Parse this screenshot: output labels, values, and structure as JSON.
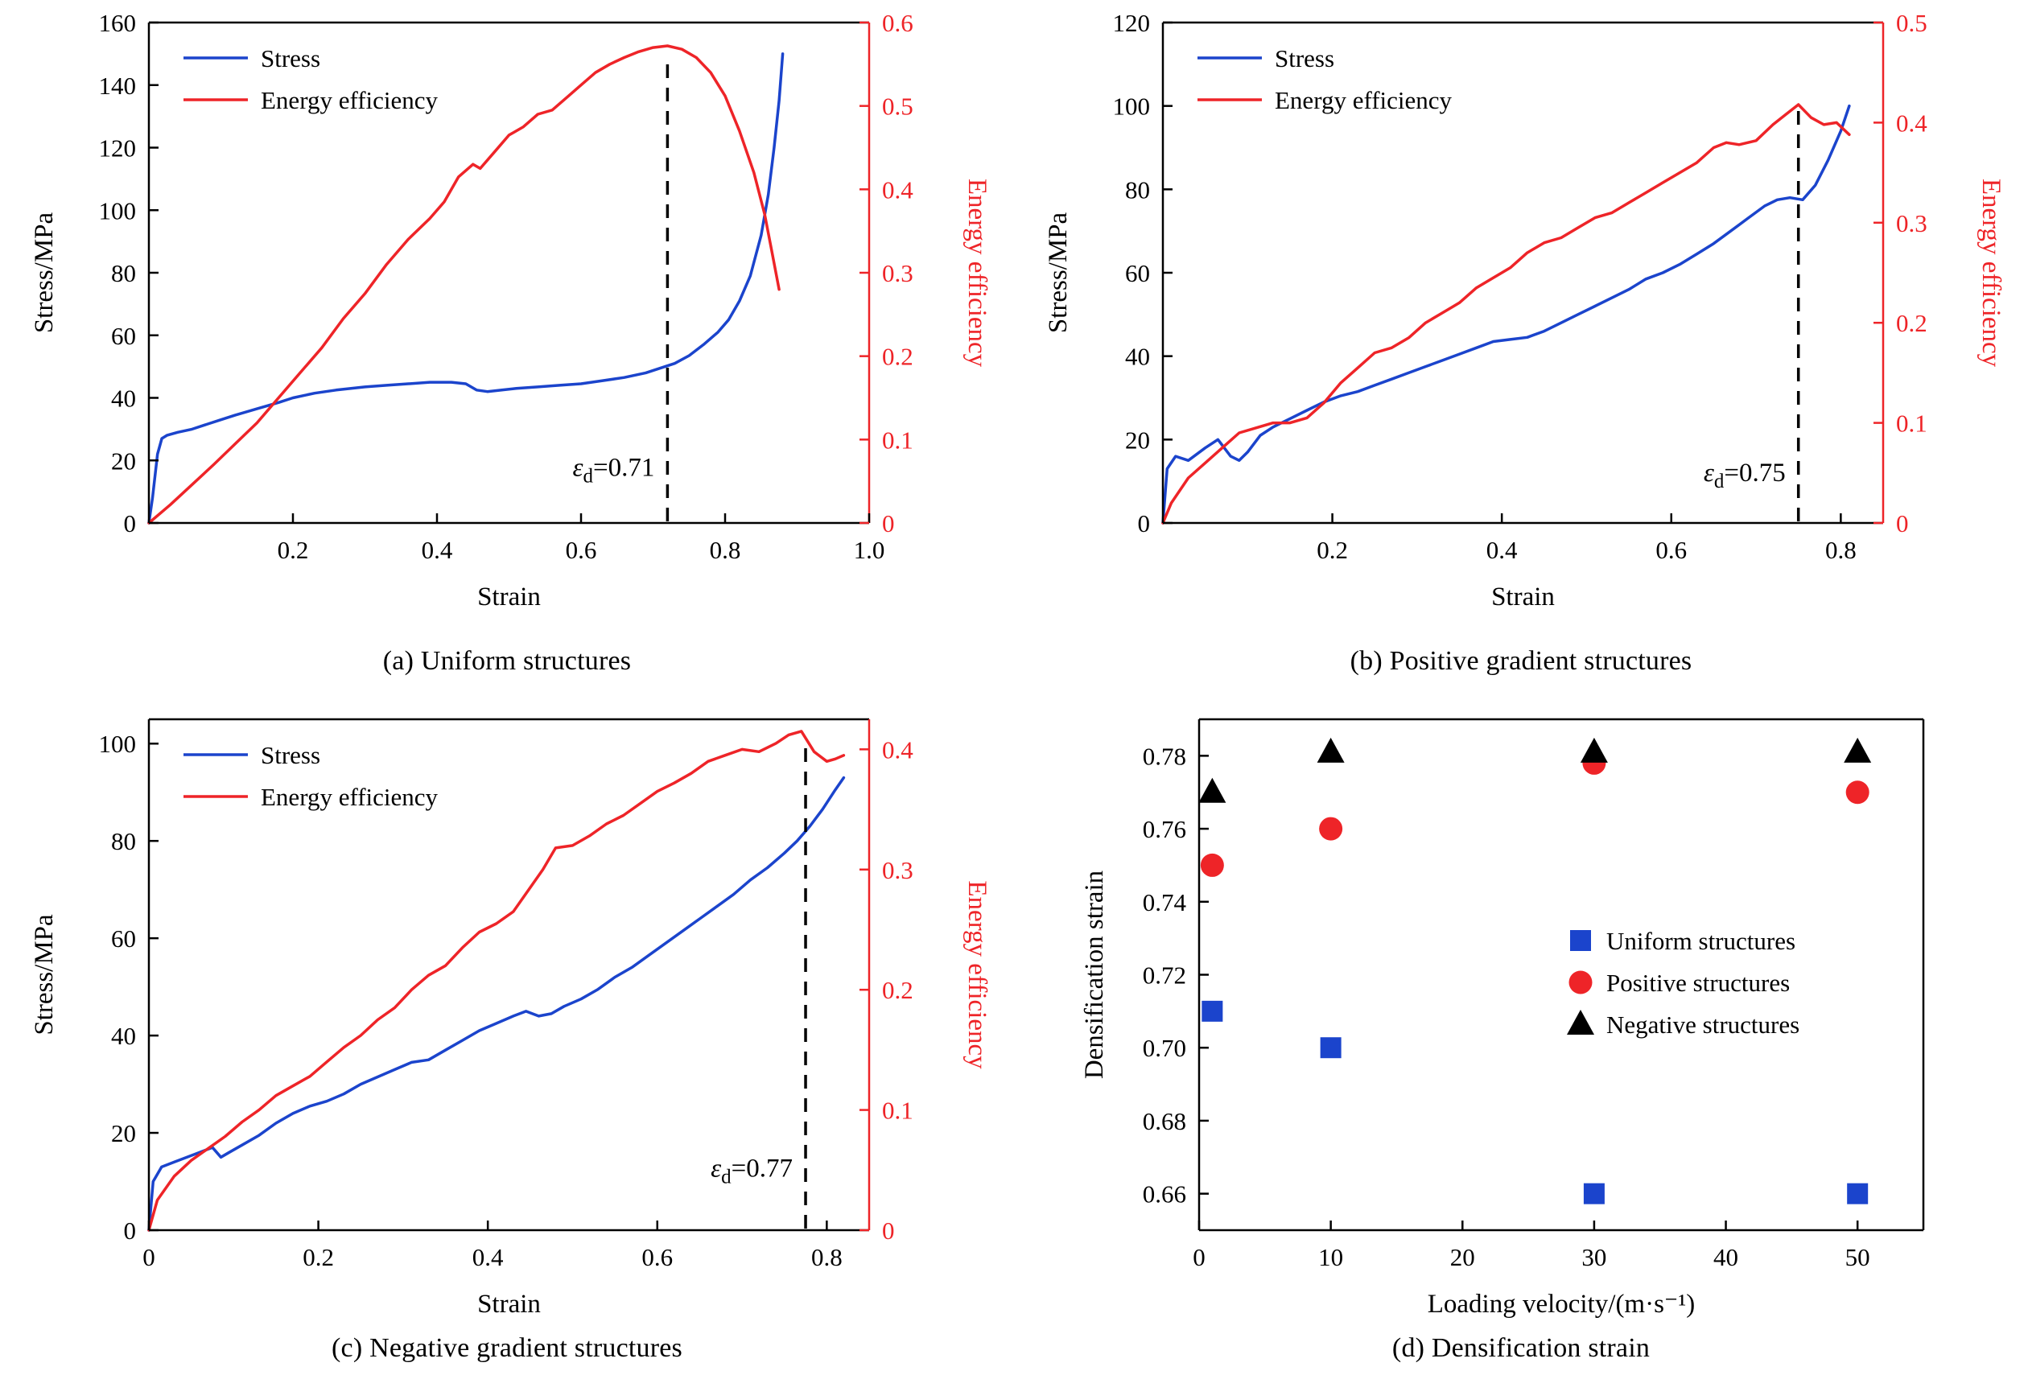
{
  "figure": {
    "background": "#ffffff"
  },
  "colors": {
    "stress_blue": "#1b44cc",
    "efficiency_red": "#ee2428",
    "marker_black": "#000000",
    "axis_black": "#000000"
  },
  "chart_data": [
    {
      "id": "a",
      "type": "line",
      "caption": "(a) Uniform structures",
      "xlabel": "Strain",
      "ylabel_left": "Stress/MPa",
      "ylabel_right": "Energy efficiency",
      "xlim": [
        0,
        1.0
      ],
      "xticks": [
        0.2,
        0.4,
        0.6,
        0.8,
        1.0
      ],
      "xtick_labels": [
        "0.2",
        "0.4",
        "0.6",
        "0.8",
        "1.0"
      ],
      "ylim_left": [
        0,
        160
      ],
      "yticks_left": [
        0,
        20,
        40,
        60,
        80,
        100,
        120,
        140,
        160
      ],
      "ytick_labels_left": [
        "0",
        "20",
        "40",
        "60",
        "80",
        "100",
        "120",
        "140",
        "160"
      ],
      "ylim_right": [
        0,
        0.6
      ],
      "yticks_right": [
        0,
        0.1,
        0.2,
        0.3,
        0.4,
        0.5,
        0.6
      ],
      "ytick_labels_right": [
        "0",
        "0.1",
        "0.2",
        "0.3",
        "0.4",
        "0.5",
        "0.6"
      ],
      "legend": [
        {
          "label": "Stress",
          "color": "stress_blue"
        },
        {
          "label": "Energy efficiency",
          "color": "efficiency_red"
        }
      ],
      "dashed_line": {
        "x": 0.72,
        "top": 148
      },
      "annotation": {
        "symbol": "ε",
        "sub": "d",
        "rest": "=0.71",
        "y": 15
      },
      "series": [
        {
          "name": "Stress",
          "axis": "left",
          "color": "stress_blue",
          "x": [
            0,
            0.005,
            0.012,
            0.018,
            0.025,
            0.04,
            0.06,
            0.08,
            0.1,
            0.12,
            0.15,
            0.18,
            0.2,
            0.23,
            0.26,
            0.3,
            0.33,
            0.36,
            0.39,
            0.42,
            0.44,
            0.455,
            0.47,
            0.49,
            0.51,
            0.54,
            0.57,
            0.6,
            0.63,
            0.66,
            0.69,
            0.71,
            0.73,
            0.75,
            0.77,
            0.79,
            0.805,
            0.82,
            0.835,
            0.85,
            0.86,
            0.868,
            0.875,
            0.88
          ],
          "y": [
            0,
            8,
            22,
            27,
            28,
            29,
            30,
            31.5,
            33,
            34.5,
            36.5,
            38.5,
            40,
            41.5,
            42.5,
            43.5,
            44,
            44.5,
            45,
            45,
            44.5,
            42.5,
            42,
            42.5,
            43,
            43.5,
            44,
            44.5,
            45.5,
            46.5,
            48,
            49.5,
            51,
            53.5,
            57,
            61,
            65,
            71,
            79,
            92,
            105,
            120,
            135,
            150
          ]
        },
        {
          "name": "Energy efficiency",
          "axis": "right",
          "color": "efficiency_red",
          "x": [
            0,
            0.03,
            0.06,
            0.09,
            0.12,
            0.15,
            0.18,
            0.21,
            0.24,
            0.27,
            0.3,
            0.33,
            0.36,
            0.39,
            0.41,
            0.43,
            0.45,
            0.46,
            0.48,
            0.5,
            0.52,
            0.54,
            0.56,
            0.58,
            0.6,
            0.62,
            0.64,
            0.66,
            0.68,
            0.7,
            0.72,
            0.74,
            0.76,
            0.78,
            0.8,
            0.82,
            0.84,
            0.855,
            0.865,
            0.875
          ],
          "y": [
            0,
            0.022,
            0.046,
            0.07,
            0.095,
            0.12,
            0.15,
            0.18,
            0.21,
            0.245,
            0.275,
            0.31,
            0.34,
            0.365,
            0.385,
            0.415,
            0.43,
            0.425,
            0.445,
            0.465,
            0.475,
            0.49,
            0.495,
            0.51,
            0.525,
            0.54,
            0.55,
            0.558,
            0.565,
            0.57,
            0.572,
            0.568,
            0.558,
            0.54,
            0.512,
            0.47,
            0.42,
            0.37,
            0.325,
            0.28
          ]
        }
      ]
    },
    {
      "id": "b",
      "type": "line",
      "caption": "(b) Positive gradient structures",
      "xlabel": "Strain",
      "ylabel_left": "Stress/MPa",
      "ylabel_right": "Energy efficiency",
      "xlim": [
        0,
        0.85
      ],
      "xticks": [
        0.2,
        0.4,
        0.6,
        0.8
      ],
      "xtick_labels": [
        "0.2",
        "0.4",
        "0.6",
        "0.8"
      ],
      "ylim_left": [
        0,
        120
      ],
      "yticks_left": [
        0,
        20,
        40,
        60,
        80,
        100,
        120
      ],
      "ytick_labels_left": [
        "0",
        "20",
        "40",
        "60",
        "80",
        "100",
        "120"
      ],
      "ylim_right": [
        0,
        0.5
      ],
      "yticks_right": [
        0,
        0.1,
        0.2,
        0.3,
        0.4,
        0.5
      ],
      "ytick_labels_right": [
        "0",
        "0.1",
        "0.2",
        "0.3",
        "0.4",
        "0.5"
      ],
      "legend": [
        {
          "label": "Stress",
          "color": "stress_blue"
        },
        {
          "label": "Energy efficiency",
          "color": "efficiency_red"
        }
      ],
      "dashed_line": {
        "x": 0.75,
        "top": 101
      },
      "annotation": {
        "symbol": "ε",
        "sub": "d",
        "rest": "=0.75",
        "y": 10
      },
      "series": [
        {
          "name": "Stress",
          "axis": "left",
          "color": "stress_blue",
          "x": [
            0,
            0.005,
            0.015,
            0.03,
            0.05,
            0.065,
            0.08,
            0.09,
            0.1,
            0.115,
            0.13,
            0.15,
            0.17,
            0.19,
            0.21,
            0.23,
            0.25,
            0.27,
            0.29,
            0.31,
            0.33,
            0.35,
            0.37,
            0.39,
            0.41,
            0.43,
            0.45,
            0.47,
            0.49,
            0.51,
            0.53,
            0.55,
            0.57,
            0.59,
            0.61,
            0.63,
            0.65,
            0.67,
            0.69,
            0.71,
            0.725,
            0.74,
            0.755,
            0.77,
            0.785,
            0.8,
            0.81
          ],
          "y": [
            0,
            13,
            16,
            15,
            18,
            20,
            16,
            15,
            17,
            21,
            23,
            25,
            27,
            29,
            30.5,
            31.5,
            33,
            34.5,
            36,
            37.5,
            39,
            40.5,
            42,
            43.5,
            44,
            44.5,
            46,
            48,
            50,
            52,
            54,
            56,
            58.5,
            60,
            62,
            64.5,
            67,
            70,
            73,
            76,
            77.5,
            78,
            77.5,
            81,
            87,
            94,
            100
          ]
        },
        {
          "name": "Energy efficiency",
          "axis": "right",
          "color": "efficiency_red",
          "x": [
            0,
            0.01,
            0.03,
            0.05,
            0.07,
            0.09,
            0.11,
            0.13,
            0.15,
            0.17,
            0.19,
            0.21,
            0.23,
            0.25,
            0.27,
            0.29,
            0.31,
            0.33,
            0.35,
            0.37,
            0.39,
            0.41,
            0.43,
            0.45,
            0.47,
            0.49,
            0.51,
            0.53,
            0.55,
            0.57,
            0.59,
            0.61,
            0.63,
            0.65,
            0.665,
            0.68,
            0.7,
            0.72,
            0.735,
            0.75,
            0.765,
            0.78,
            0.795,
            0.81
          ],
          "y": [
            0,
            0.02,
            0.045,
            0.06,
            0.075,
            0.09,
            0.095,
            0.1,
            0.1,
            0.105,
            0.12,
            0.14,
            0.155,
            0.17,
            0.175,
            0.185,
            0.2,
            0.21,
            0.22,
            0.235,
            0.245,
            0.255,
            0.27,
            0.28,
            0.285,
            0.295,
            0.305,
            0.31,
            0.32,
            0.33,
            0.34,
            0.35,
            0.36,
            0.375,
            0.38,
            0.378,
            0.382,
            0.398,
            0.408,
            0.418,
            0.405,
            0.398,
            0.4,
            0.388
          ]
        }
      ]
    },
    {
      "id": "c",
      "type": "line",
      "caption": "(c) Negative gradient structures",
      "xlabel": "Strain",
      "ylabel_left": "Stress/MPa",
      "ylabel_right": "Energy efficiency",
      "xlim": [
        0,
        0.85
      ],
      "xticks": [
        0,
        0.2,
        0.4,
        0.6,
        0.8
      ],
      "xtick_labels": [
        "0",
        "0.2",
        "0.4",
        "0.6",
        "0.8"
      ],
      "ylim_left": [
        0,
        105
      ],
      "yticks_left": [
        0,
        20,
        40,
        60,
        80,
        100
      ],
      "ytick_labels_left": [
        "0",
        "20",
        "40",
        "60",
        "80",
        "100"
      ],
      "ylim_right": [
        0,
        0.425
      ],
      "yticks_right": [
        0,
        0.1,
        0.2,
        0.3,
        0.4
      ],
      "ytick_labels_right": [
        "0",
        "0.1",
        "0.2",
        "0.3",
        "0.4"
      ],
      "legend": [
        {
          "label": "Stress",
          "color": "stress_blue"
        },
        {
          "label": "Energy efficiency",
          "color": "efficiency_red"
        }
      ],
      "dashed_line": {
        "x": 0.775,
        "top": 101
      },
      "annotation": {
        "symbol": "ε",
        "sub": "d",
        "rest": "=0.77",
        "y": 11
      },
      "series": [
        {
          "name": "Stress",
          "axis": "left",
          "color": "stress_blue",
          "x": [
            0,
            0.005,
            0.015,
            0.03,
            0.045,
            0.06,
            0.075,
            0.085,
            0.095,
            0.11,
            0.13,
            0.15,
            0.17,
            0.19,
            0.21,
            0.23,
            0.25,
            0.27,
            0.29,
            0.31,
            0.33,
            0.35,
            0.37,
            0.39,
            0.41,
            0.43,
            0.445,
            0.46,
            0.475,
            0.49,
            0.51,
            0.53,
            0.55,
            0.57,
            0.59,
            0.61,
            0.63,
            0.65,
            0.67,
            0.69,
            0.71,
            0.73,
            0.75,
            0.765,
            0.78,
            0.795,
            0.81,
            0.82
          ],
          "y": [
            0,
            10,
            13,
            14,
            15,
            16,
            17,
            15,
            16,
            17.5,
            19.5,
            22,
            24,
            25.5,
            26.5,
            28,
            30,
            31.5,
            33,
            34.5,
            35,
            37,
            39,
            41,
            42.5,
            44,
            45,
            44,
            44.5,
            46,
            47.5,
            49.5,
            52,
            54,
            56.5,
            59,
            61.5,
            64,
            66.5,
            69,
            72,
            74.5,
            77.5,
            80,
            83,
            86.5,
            90.5,
            93
          ]
        },
        {
          "name": "Energy efficiency",
          "axis": "right",
          "color": "efficiency_red",
          "x": [
            0,
            0.01,
            0.03,
            0.05,
            0.07,
            0.09,
            0.11,
            0.13,
            0.15,
            0.17,
            0.19,
            0.21,
            0.23,
            0.25,
            0.27,
            0.29,
            0.31,
            0.33,
            0.35,
            0.37,
            0.39,
            0.41,
            0.43,
            0.45,
            0.465,
            0.48,
            0.5,
            0.52,
            0.54,
            0.56,
            0.58,
            0.6,
            0.62,
            0.64,
            0.66,
            0.68,
            0.7,
            0.72,
            0.74,
            0.755,
            0.77,
            0.785,
            0.8,
            0.81,
            0.82
          ],
          "y": [
            0,
            0.025,
            0.045,
            0.058,
            0.068,
            0.078,
            0.09,
            0.1,
            0.112,
            0.12,
            0.128,
            0.14,
            0.152,
            0.162,
            0.175,
            0.185,
            0.2,
            0.212,
            0.22,
            0.235,
            0.248,
            0.255,
            0.265,
            0.285,
            0.3,
            0.318,
            0.32,
            0.328,
            0.338,
            0.345,
            0.355,
            0.365,
            0.372,
            0.38,
            0.39,
            0.395,
            0.4,
            0.398,
            0.405,
            0.412,
            0.415,
            0.398,
            0.39,
            0.392,
            0.395
          ]
        }
      ]
    },
    {
      "id": "d",
      "type": "scatter",
      "caption": "(d) Densification strain",
      "xlabel": "Loading velocity/(m·s⁻¹)",
      "ylabel_left": "Densification strain",
      "xlim": [
        0,
        55
      ],
      "xticks": [
        0,
        10,
        20,
        30,
        40,
        50
      ],
      "xtick_labels": [
        "0",
        "10",
        "20",
        "30",
        "40",
        "50"
      ],
      "ylim_left": [
        0.65,
        0.79
      ],
      "yticks_left": [
        0.66,
        0.68,
        0.7,
        0.72,
        0.74,
        0.76,
        0.78
      ],
      "ytick_labels_left": [
        "0.66",
        "0.68",
        "0.70",
        "0.72",
        "0.74",
        "0.76",
        "0.78"
      ],
      "legend": [
        {
          "label": "Uniform structures",
          "marker": "square",
          "color": "stress_blue"
        },
        {
          "label": "Positive structures",
          "marker": "circle",
          "color": "efficiency_red"
        },
        {
          "label": "Negative structures",
          "marker": "triangle",
          "color": "marker_black"
        }
      ],
      "series": [
        {
          "name": "Uniform structures",
          "marker": "square",
          "color": "stress_blue",
          "x": [
            1,
            10,
            30,
            50
          ],
          "y": [
            0.71,
            0.7,
            0.66,
            0.66
          ]
        },
        {
          "name": "Positive structures",
          "marker": "circle",
          "color": "efficiency_red",
          "x": [
            1,
            10,
            30,
            50
          ],
          "y": [
            0.75,
            0.76,
            0.778,
            0.77
          ]
        },
        {
          "name": "Negative structures",
          "marker": "triangle",
          "color": "marker_black",
          "x": [
            1,
            10,
            30,
            50
          ],
          "y": [
            0.77,
            0.781,
            0.781,
            0.781
          ]
        }
      ]
    }
  ]
}
